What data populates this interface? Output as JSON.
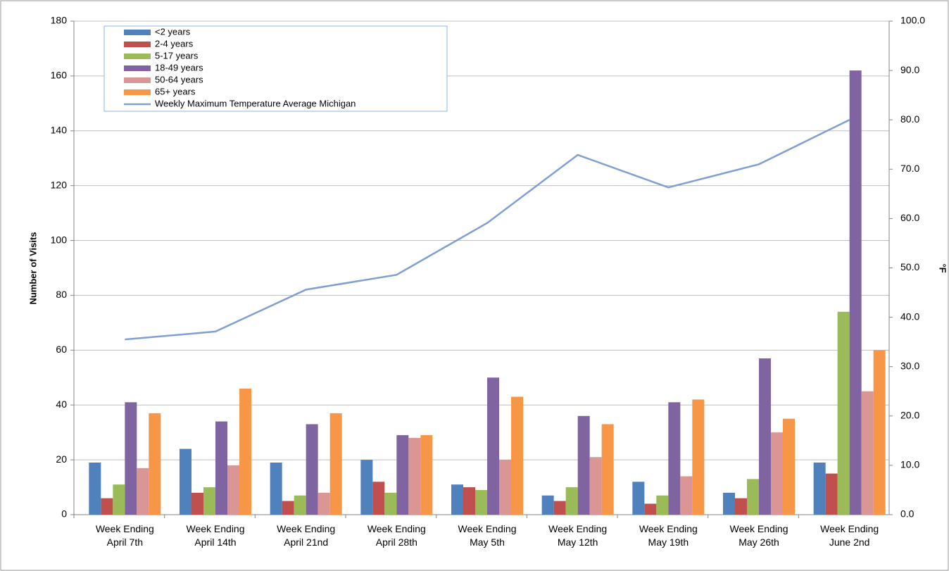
{
  "chart_data": {
    "type": "bar",
    "y_label": "Number of Visits",
    "y2_label": "°F",
    "categories": [
      "Week Ending\nApril 7th",
      "Week Ending\nApril 14th",
      "Week Ending\nApril 21nd",
      "Week Ending\nApril 28th",
      "Week Ending\nMay 5th",
      "Week Ending\nMay 12th",
      "Week Ending\nMay 19th",
      "Week Ending\nMay 26th",
      "Week Ending\nJune 2nd"
    ],
    "series": [
      {
        "name": "<2 years",
        "color": "#4f81bd",
        "values": [
          19,
          24,
          19,
          20,
          11,
          7,
          12,
          8,
          19
        ]
      },
      {
        "name": "2-4 years",
        "color": "#c0504d",
        "values": [
          6,
          8,
          5,
          12,
          10,
          5,
          4,
          6,
          15
        ]
      },
      {
        "name": "5-17 years",
        "color": "#9bbb59",
        "values": [
          11,
          10,
          7,
          8,
          9,
          10,
          7,
          13,
          74
        ]
      },
      {
        "name": "18-49 years",
        "color": "#8064a2",
        "values": [
          41,
          34,
          33,
          29,
          50,
          36,
          41,
          57,
          162
        ]
      },
      {
        "name": "50-64 years",
        "color": "#d99694",
        "values": [
          17,
          18,
          8,
          28,
          20,
          21,
          14,
          30,
          45
        ]
      },
      {
        "name": "65+ years",
        "color": "#f79646",
        "values": [
          37,
          46,
          37,
          29,
          43,
          33,
          42,
          35,
          60
        ]
      },
      {
        "name": "Weekly Maximum Temperature Average Michigan",
        "color": "#7f9fd3",
        "type": "line",
        "axis": "y2",
        "values": [
          35.5,
          37.1,
          45.6,
          48.6,
          59.1,
          72.9,
          66.3,
          71.0,
          80.0
        ]
      }
    ],
    "ylim": [
      0,
      180
    ],
    "yticks": [
      0,
      20,
      40,
      60,
      80,
      100,
      120,
      140,
      160,
      180
    ],
    "y2lim": [
      0,
      100
    ],
    "y2ticks": [
      {
        "value": 0,
        "label": "0.0"
      },
      {
        "value": 10,
        "label": "10.0"
      },
      {
        "value": 20,
        "label": "20.0"
      },
      {
        "value": 30,
        "label": "30.0"
      },
      {
        "value": 40,
        "label": "40.0"
      },
      {
        "value": 50,
        "label": "50.0"
      },
      {
        "value": 60,
        "label": "60.0"
      },
      {
        "value": 70,
        "label": "70.0"
      },
      {
        "value": 80,
        "label": "80.0"
      },
      {
        "value": 90,
        "label": "90.0"
      },
      {
        "value": 100,
        "label": "100.0"
      }
    ],
    "grid": true,
    "legend": "upper left"
  }
}
